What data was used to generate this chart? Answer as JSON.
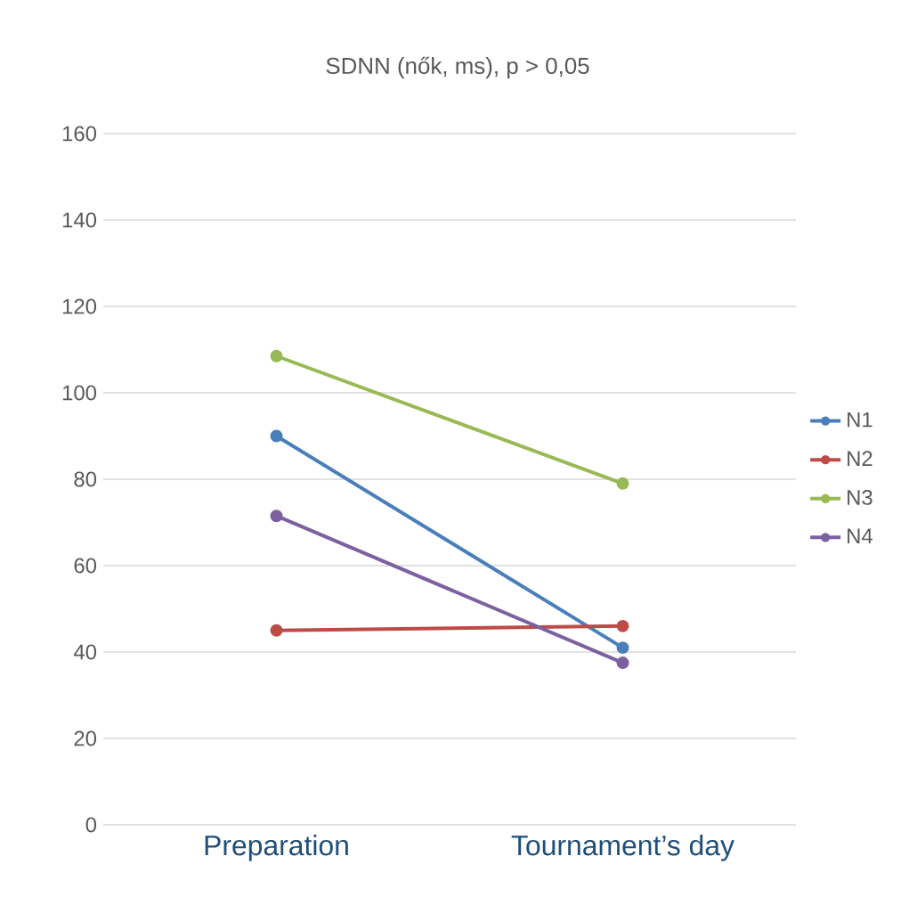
{
  "chart_data": {
    "type": "line",
    "title": "SDNN (nők, ms), p > 0,05",
    "categories": [
      "Preparation",
      "Tournament’s day"
    ],
    "series": [
      {
        "name": "N1",
        "color": "#4a7ebb",
        "values": [
          90,
          41
        ]
      },
      {
        "name": "N2",
        "color": "#be4b48",
        "values": [
          45,
          46
        ]
      },
      {
        "name": "N3",
        "color": "#98b954",
        "values": [
          108.5,
          79
        ]
      },
      {
        "name": "N4",
        "color": "#7d60a0",
        "values": [
          71.5,
          37.5
        ]
      }
    ],
    "ylim": [
      0,
      160
    ],
    "yticks": [
      0,
      20,
      40,
      60,
      80,
      100,
      120,
      140,
      160
    ],
    "grid": "y",
    "legend": "right",
    "marker": "circle",
    "line_style": "solid"
  }
}
